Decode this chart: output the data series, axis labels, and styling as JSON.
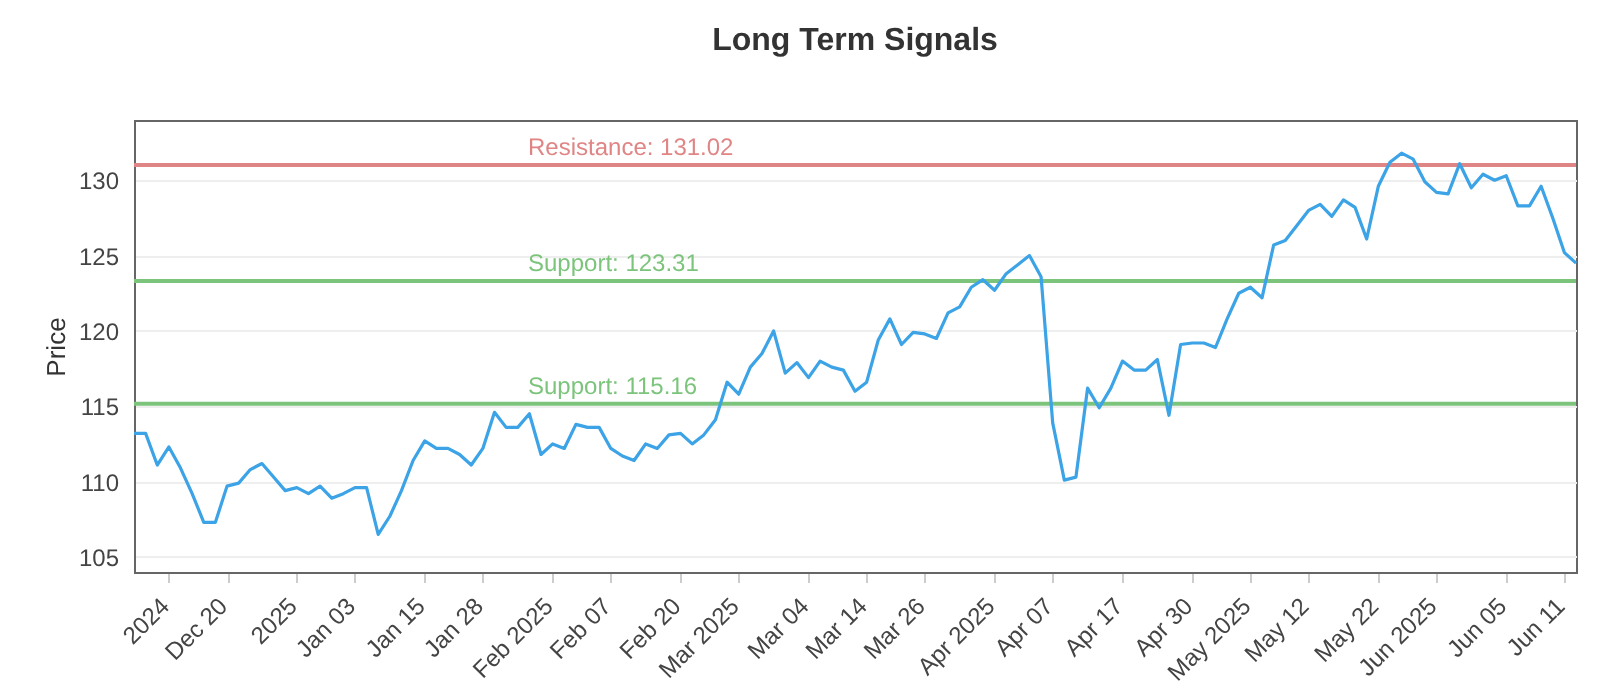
{
  "chart_data": {
    "type": "line",
    "title": "Long Term Signals",
    "ylabel": "Price",
    "categories": [
      null,
      null,
      null,
      "2024",
      null,
      null,
      null,
      null,
      "Dec 20",
      null,
      null,
      null,
      null,
      null,
      "2025",
      null,
      null,
      null,
      null,
      "Jan 03",
      null,
      null,
      null,
      null,
      null,
      "Jan 15",
      null,
      null,
      null,
      null,
      "Jan 28",
      null,
      null,
      null,
      null,
      null,
      "Feb 2025",
      null,
      null,
      null,
      null,
      "Feb 07",
      null,
      null,
      null,
      null,
      null,
      "Feb 20",
      null,
      null,
      null,
      null,
      "Mar 2025",
      null,
      null,
      null,
      null,
      null,
      "Mar 04",
      null,
      null,
      null,
      null,
      "Mar 14",
      null,
      null,
      null,
      null,
      "Mar 26",
      null,
      null,
      null,
      null,
      null,
      "Apr 2025",
      null,
      null,
      null,
      null,
      "Apr 07",
      null,
      null,
      null,
      null,
      null,
      "Apr 17",
      null,
      null,
      null,
      null,
      null,
      "Apr 30",
      null,
      null,
      null,
      null,
      "May 2025",
      null,
      null,
      null,
      null,
      "May 12",
      null,
      null,
      null,
      null,
      null,
      "May 22",
      null,
      null,
      null,
      null,
      "Jun 2025",
      null,
      null,
      null,
      null,
      null,
      "Jun 05",
      null,
      null,
      null,
      null,
      "Jun 11",
      null
    ],
    "series": [
      {
        "color": "#3ba3e6",
        "values": [
          113.2,
          113.2,
          111.1,
          112.3,
          110.9,
          109.2,
          107.3,
          107.3,
          109.7,
          109.9,
          110.8,
          111.2,
          110.3,
          109.4,
          109.6,
          109.2,
          109.7,
          108.9,
          109.2,
          109.6,
          109.6,
          106.5,
          107.7,
          109.4,
          111.4,
          112.7,
          112.2,
          112.2,
          111.8,
          111.1,
          112.2,
          114.6,
          113.6,
          113.6,
          114.5,
          111.8,
          112.5,
          112.2,
          113.8,
          113.6,
          113.6,
          112.2,
          111.7,
          111.4,
          112.5,
          112.2,
          113.1,
          113.2,
          112.5,
          113.1,
          114.1,
          116.6,
          115.8,
          117.6,
          118.5,
          120.0,
          117.2,
          117.9,
          116.9,
          118.0,
          117.6,
          117.4,
          116.0,
          116.6,
          119.4,
          120.8,
          119.1,
          119.9,
          119.8,
          119.5,
          121.2,
          121.6,
          122.9,
          123.4,
          122.7,
          123.8,
          124.4,
          125.0,
          123.6,
          113.9,
          110.1,
          110.3,
          116.2,
          114.9,
          116.2,
          118.0,
          117.4,
          117.4,
          118.1,
          114.4,
          119.1,
          119.2,
          119.2,
          118.9,
          120.8,
          122.5,
          122.9,
          122.2,
          125.7,
          126.0,
          127.0,
          128.0,
          128.4,
          127.6,
          128.7,
          128.2,
          126.1,
          129.6,
          131.2,
          131.8,
          131.4,
          129.9,
          129.2,
          129.1,
          131.1,
          129.5,
          130.4,
          130.0,
          130.3,
          128.3,
          128.3,
          129.6,
          127.5,
          125.2,
          124.5
        ]
      }
    ],
    "ylim": [
      104,
      134
    ],
    "yticks": [
      105,
      110,
      115,
      120,
      125,
      130
    ],
    "grid": "y",
    "ref_lines": [
      {
        "axis": "y",
        "value": 131.02,
        "label": "Resistance: 131.02",
        "color": "#e08585"
      },
      {
        "axis": "y",
        "value": 123.31,
        "label": "Support: 123.31",
        "color": "#7cc47c"
      },
      {
        "axis": "y",
        "value": 115.16,
        "label": "Support: 115.16",
        "color": "#7cc47c"
      }
    ]
  }
}
